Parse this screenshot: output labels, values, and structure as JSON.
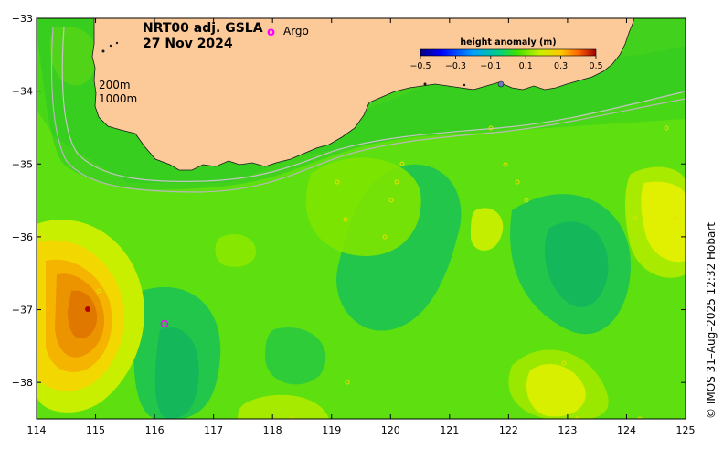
{
  "title": {
    "product": "NRT00 adj. GSLA",
    "date": "27 Nov 2024"
  },
  "legend": {
    "argo_symbol": "o",
    "argo_label": "Argo",
    "argo_color": "#ff00ff"
  },
  "isobaths": {
    "label_200": "200m",
    "label_1000": "1000m"
  },
  "colorbar": {
    "title": "height anomaly (m)",
    "ticks": [
      "−0.5",
      "−0.3",
      "−0.1",
      "0.1",
      "0.3",
      "0.5"
    ]
  },
  "axes": {
    "x_ticks": [
      "114",
      "115",
      "116",
      "117",
      "118",
      "119",
      "120",
      "121",
      "122",
      "123",
      "124",
      "125"
    ],
    "y_ticks": [
      "−33",
      "−34",
      "−35",
      "−36",
      "−37",
      "−38"
    ],
    "lon_range": [
      114,
      125
    ],
    "lat_range": [
      -38.5,
      -33
    ]
  },
  "credit": "©  IMOS 31–Aug–2025 12:32 Hobart",
  "colors": {
    "land": "#fcca98",
    "background_anomaly": "#5ee010",
    "positive_strong": "#e07800",
    "negative": "#10b060"
  }
}
